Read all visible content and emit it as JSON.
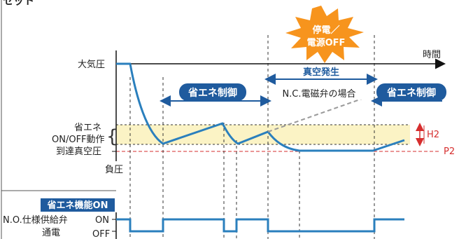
{
  "top_label": "セット",
  "axis": {
    "time": "時間",
    "atmospheric": "大気圧",
    "negative": "負圧",
    "reached_vacuum": "到達真空圧",
    "eco_onoff_line1": "省エネ",
    "eco_onoff_line2": "ON/OFF動作"
  },
  "markers": {
    "h2": "H2",
    "p2": "P2"
  },
  "burst": {
    "line1": "停電／",
    "line2": "電源OFF"
  },
  "phases": {
    "eco_control_1": "省エネ制御",
    "eco_control_2": "省エネ制御",
    "vacuum_generation": "真空発生",
    "nc_case": "N.C.電磁弁の場合"
  },
  "bottom": {
    "badge": "省エネ機能ON",
    "valve_label": "N.O.仕様供給弁",
    "energize": "通電",
    "on": "ON",
    "off": "OFF"
  },
  "colors": {
    "curve": "#2a7fbd",
    "band": "#fbf3c5",
    "pill": "#1f5b9e",
    "burst": "#f7941d",
    "marker": "#d62e2e"
  }
}
